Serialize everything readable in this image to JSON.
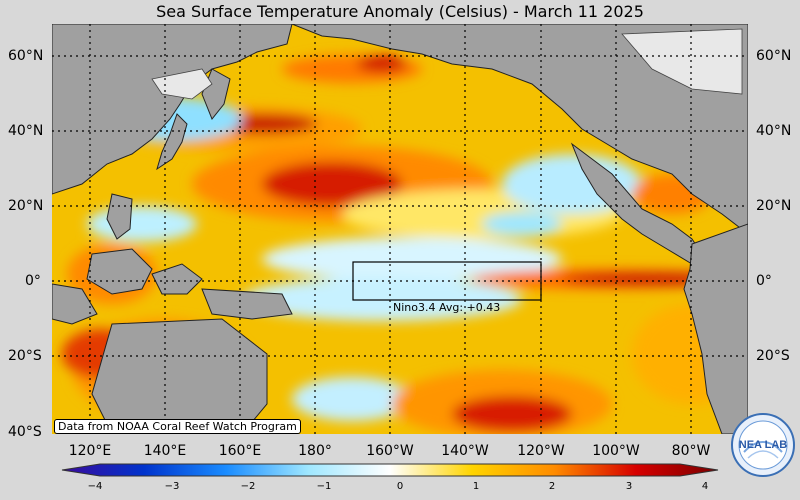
{
  "title": "Sea Surface Temperature Anomaly (Celsius) - March 11 2025",
  "latitude_labels": [
    "60°N",
    "40°N",
    "20°N",
    "0°",
    "20°S",
    "40°S"
  ],
  "longitude_labels": [
    "120°E",
    "140°E",
    "160°E",
    "180°",
    "160°W",
    "140°W",
    "120°W",
    "100°W",
    "80°W"
  ],
  "colorbar": {
    "ticks": [
      "−4",
      "−3",
      "−2",
      "−1",
      "0",
      "1",
      "2",
      "3",
      "4"
    ],
    "colors": {
      "min": "#3a0a9c",
      "m3": "#0033cc",
      "m2": "#1a8cff",
      "m1": "#9fe7ff",
      "zero": "#ffffff",
      "p1": "#ffd400",
      "p2": "#ff8c00",
      "p3": "#d60000",
      "max": "#7a0000"
    }
  },
  "nino_box": {
    "label": "Nino3.4 Avg: +0.43"
  },
  "credit": "Data from NOAA Coral Reef Watch Program",
  "logo": {
    "text": "NEA LAB"
  },
  "map_colors": {
    "land": "#a0a0a0",
    "ice": "#e8e8e8",
    "ocean_base": "#f4c000"
  }
}
